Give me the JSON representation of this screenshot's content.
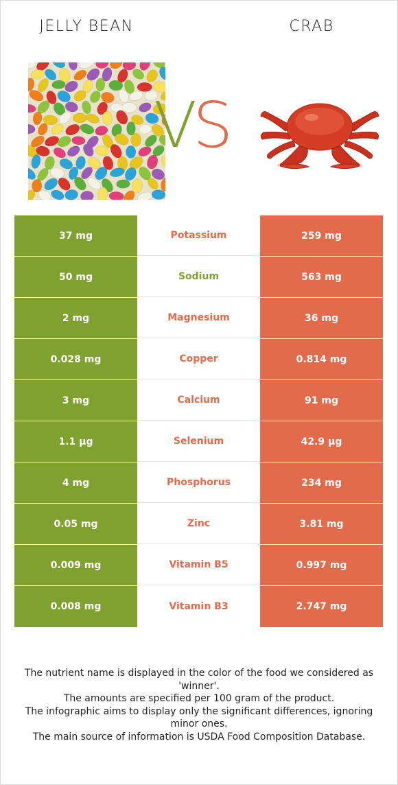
{
  "colors": {
    "winner_left": "#7ea12f",
    "winner_right": "#e26b4c"
  },
  "header": {
    "left_title": "JELLY BEAN",
    "right_title": "CRAB",
    "vs_v": "V",
    "vs_s": "S"
  },
  "nutrients": [
    {
      "name": "Potassium",
      "left": "37 mg",
      "right": "259 mg",
      "winner": "right"
    },
    {
      "name": "Sodium",
      "left": "50 mg",
      "right": "563 mg",
      "winner": "left"
    },
    {
      "name": "Magnesium",
      "left": "2 mg",
      "right": "36 mg",
      "winner": "right"
    },
    {
      "name": "Copper",
      "left": "0.028 mg",
      "right": "0.814 mg",
      "winner": "right"
    },
    {
      "name": "Calcium",
      "left": "3 mg",
      "right": "91 mg",
      "winner": "right"
    },
    {
      "name": "Selenium",
      "left": "1.1 µg",
      "right": "42.9 µg",
      "winner": "right"
    },
    {
      "name": "Phosphorus",
      "left": "4 mg",
      "right": "234 mg",
      "winner": "right"
    },
    {
      "name": "Zinc",
      "left": "0.05 mg",
      "right": "3.81 mg",
      "winner": "right"
    },
    {
      "name": "Vitamin B5",
      "left": "0.009 mg",
      "right": "0.997 mg",
      "winner": "right"
    },
    {
      "name": "Vitamin B3",
      "left": "0.008 mg",
      "right": "2.747 mg",
      "winner": "right"
    }
  ],
  "footer": {
    "line1": "The nutrient name is displayed in the color of the food we considered as 'winner'.",
    "line2": "The amounts are specified per 100 gram of the product.",
    "line3": "The infographic aims to display only the significant differences, ignoring minor ones.",
    "line4": "The main source of information is USDA Food Composition Database."
  }
}
